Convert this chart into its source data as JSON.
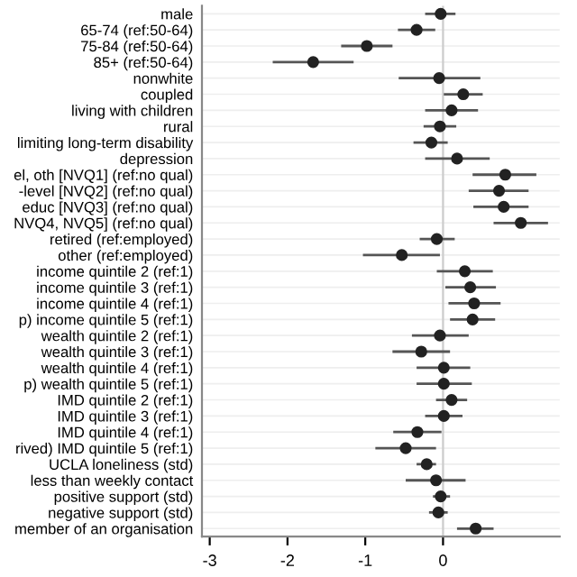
{
  "chart_data": {
    "type": "scatter",
    "orientation": "horizontal",
    "categories": [
      "male",
      "65-74 (ref:50-64)",
      "75-84 (ref:50-64)",
      "85+ (ref:50-64)",
      "nonwhite",
      "coupled",
      "living with children",
      "rural",
      "limiting long-term disability",
      "depression",
      "el, oth [NVQ1] (ref:no qual)",
      "-level [NVQ2] (ref:no qual)",
      "educ [NVQ3] (ref:no qual)",
      "NVQ4, NVQ5] (ref:no qual)",
      "retired (ref:employed)",
      "other (ref:employed)",
      "income quintile 2 (ref:1)",
      "income quintile 3 (ref:1)",
      "income quintile 4 (ref:1)",
      "p) income quintile 5 (ref:1)",
      "wealth quintile 2 (ref:1)",
      "wealth quintile 3 (ref:1)",
      "wealth quintile 4 (ref:1)",
      "p) wealth quintile 5 (ref:1)",
      "IMD quintile 2 (ref:1)",
      "IMD quintile 3 (ref:1)",
      "IMD quintile 4 (ref:1)",
      "rived) IMD quintile 5 (ref:1)",
      "UCLA loneliness (std)",
      "less than weekly contact",
      "positive support (std)",
      "negative support (std)",
      "member of an organisation"
    ],
    "values": [
      -0.03,
      -0.34,
      -0.98,
      -1.67,
      -0.05,
      0.26,
      0.11,
      -0.04,
      -0.15,
      0.18,
      0.8,
      0.72,
      0.78,
      1.0,
      -0.08,
      -0.53,
      0.28,
      0.35,
      0.4,
      0.38,
      -0.04,
      -0.28,
      0.01,
      0.01,
      0.11,
      0.01,
      -0.33,
      -0.48,
      -0.21,
      -0.09,
      -0.03,
      -0.06,
      0.42
    ],
    "errors": [
      [
        -0.23,
        0.16
      ],
      [
        -0.58,
        -0.1
      ],
      [
        -1.31,
        -0.65
      ],
      [
        -2.19,
        -1.15
      ],
      [
        -0.57,
        0.48
      ],
      [
        0.01,
        0.51
      ],
      [
        -0.23,
        0.45
      ],
      [
        -0.25,
        0.17
      ],
      [
        -0.38,
        0.06
      ],
      [
        -0.23,
        0.6
      ],
      [
        0.38,
        1.2
      ],
      [
        0.33,
        1.1
      ],
      [
        0.39,
        1.1
      ],
      [
        0.65,
        1.35
      ],
      [
        -0.3,
        0.15
      ],
      [
        -1.03,
        -0.04
      ],
      [
        -0.08,
        0.64
      ],
      [
        0.03,
        0.68
      ],
      [
        0.07,
        0.74
      ],
      [
        0.09,
        0.67
      ],
      [
        -0.4,
        0.33
      ],
      [
        -0.65,
        0.09
      ],
      [
        -0.34,
        0.35
      ],
      [
        -0.34,
        0.37
      ],
      [
        -0.09,
        0.31
      ],
      [
        -0.23,
        0.25
      ],
      [
        -0.64,
        -0.02
      ],
      [
        -0.87,
        -0.09
      ],
      [
        -0.34,
        -0.09
      ],
      [
        -0.48,
        0.29
      ],
      [
        -0.13,
        0.09
      ],
      [
        -0.18,
        0.06
      ],
      [
        0.18,
        0.65
      ]
    ],
    "color": "#222222",
    "marker": "circle",
    "xlim": [
      -3.1,
      1.5
    ],
    "xticks": [
      -3,
      -2,
      -1,
      0
    ],
    "grid": "y",
    "ref_lines": [
      {
        "axis": "x",
        "value": 0,
        "color": "#cccccc"
      }
    ]
  }
}
